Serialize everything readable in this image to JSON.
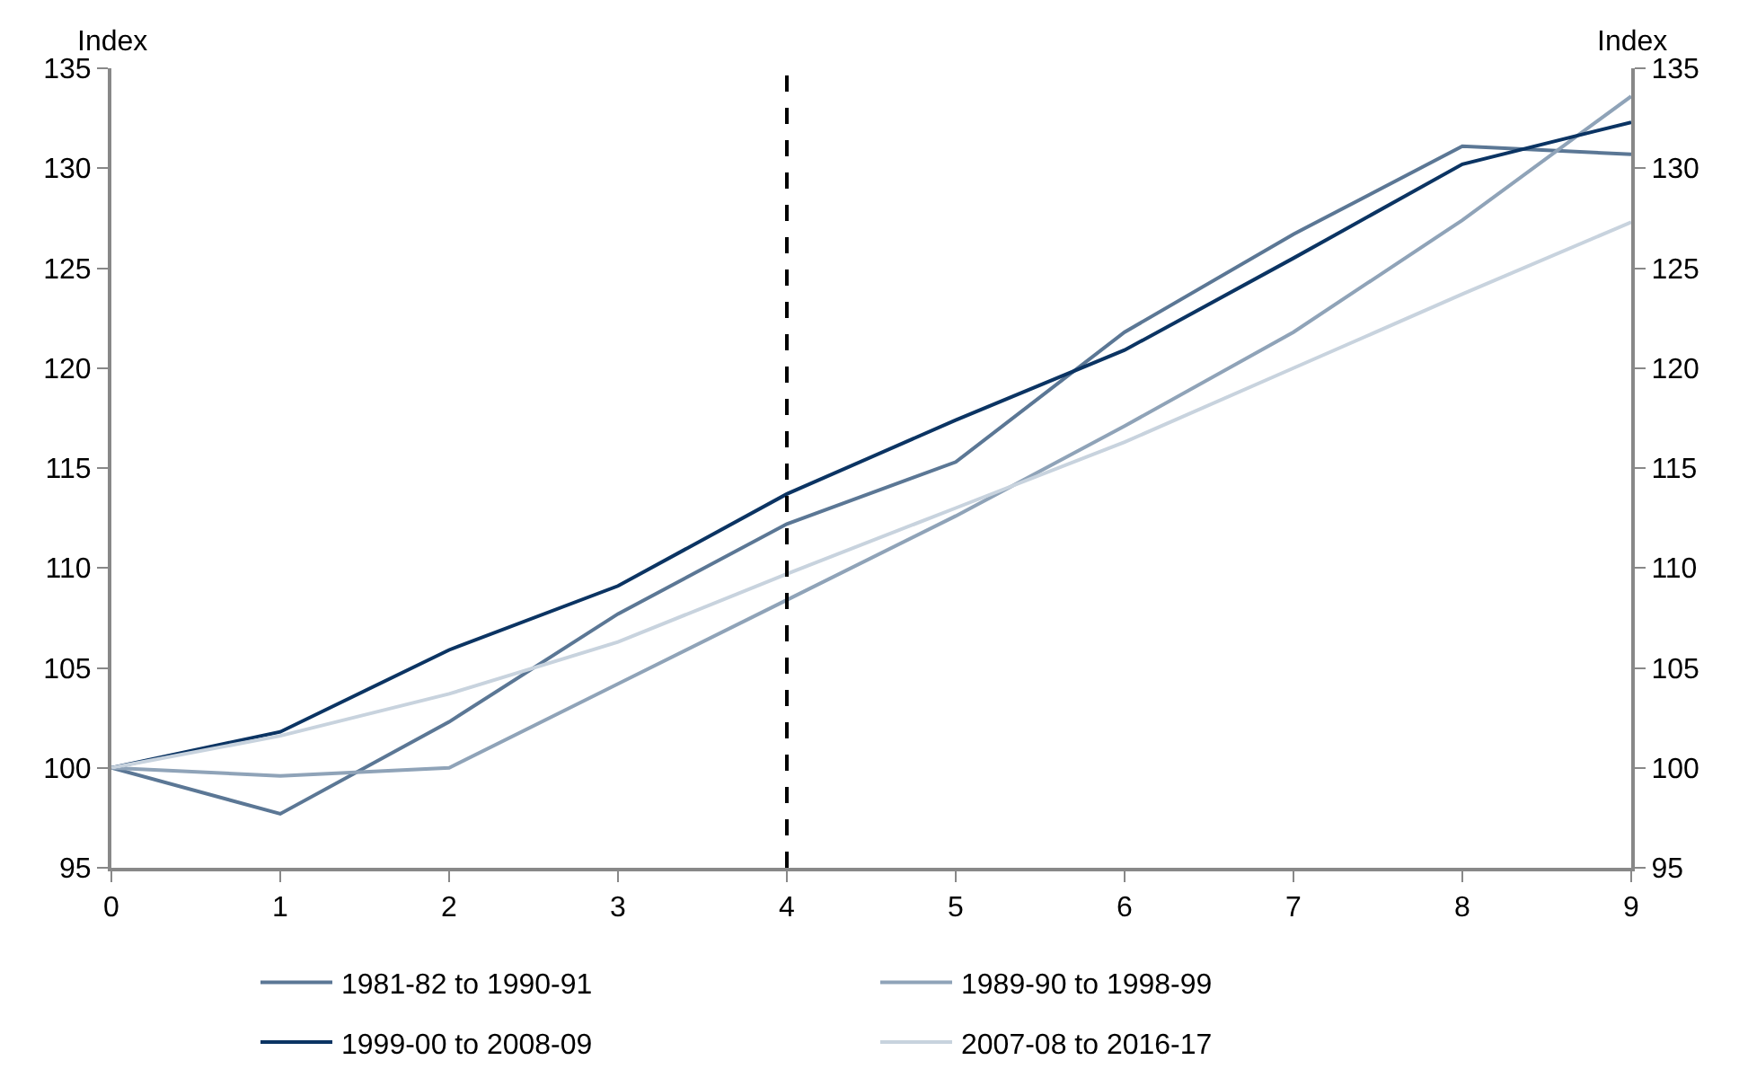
{
  "chart_data": {
    "type": "line",
    "ylabel": "Index",
    "y2label": "Index",
    "x": [
      0,
      1,
      2,
      3,
      4,
      5,
      6,
      7,
      8,
      9
    ],
    "xlim": [
      0,
      9
    ],
    "xticks": [
      0,
      1,
      2,
      3,
      4,
      5,
      6,
      7,
      8,
      9
    ],
    "ylim": [
      95,
      135
    ],
    "yticks": [
      95,
      100,
      105,
      110,
      115,
      120,
      125,
      130,
      135
    ],
    "y2lim": [
      95,
      135
    ],
    "y2ticks": [
      95,
      100,
      105,
      110,
      115,
      120,
      125,
      130,
      135
    ],
    "grid": false,
    "legend": "bottom",
    "marker": "none",
    "line_style": "solid",
    "ref_lines": [
      {
        "axis": "x",
        "value": 4,
        "color": "#000000",
        "line_style": "dashed"
      }
    ],
    "series": [
      {
        "name": "1981-82 to 1990-91",
        "color": "#5b7795",
        "values": [
          100,
          97.7,
          102.3,
          107.7,
          112.2,
          115.3,
          121.8,
          126.7,
          131.1,
          130.7
        ]
      },
      {
        "name": "1989-90 to 1998-99",
        "color": "#8fa3b8",
        "values": [
          100,
          99.6,
          100.0,
          104.2,
          108.4,
          112.6,
          117.1,
          121.8,
          127.4,
          133.6
        ]
      },
      {
        "name": "1999-00 to 2008-09",
        "color": "#0b3463",
        "values": [
          100,
          101.8,
          105.9,
          109.1,
          113.7,
          117.4,
          120.9,
          125.5,
          130.2,
          132.3
        ]
      },
      {
        "name": "2007-08 to 2016-17",
        "color": "#c8d3de",
        "values": [
          100,
          101.6,
          103.7,
          106.3,
          109.7,
          113.0,
          116.3,
          120.0,
          123.7,
          127.3
        ]
      }
    ]
  }
}
